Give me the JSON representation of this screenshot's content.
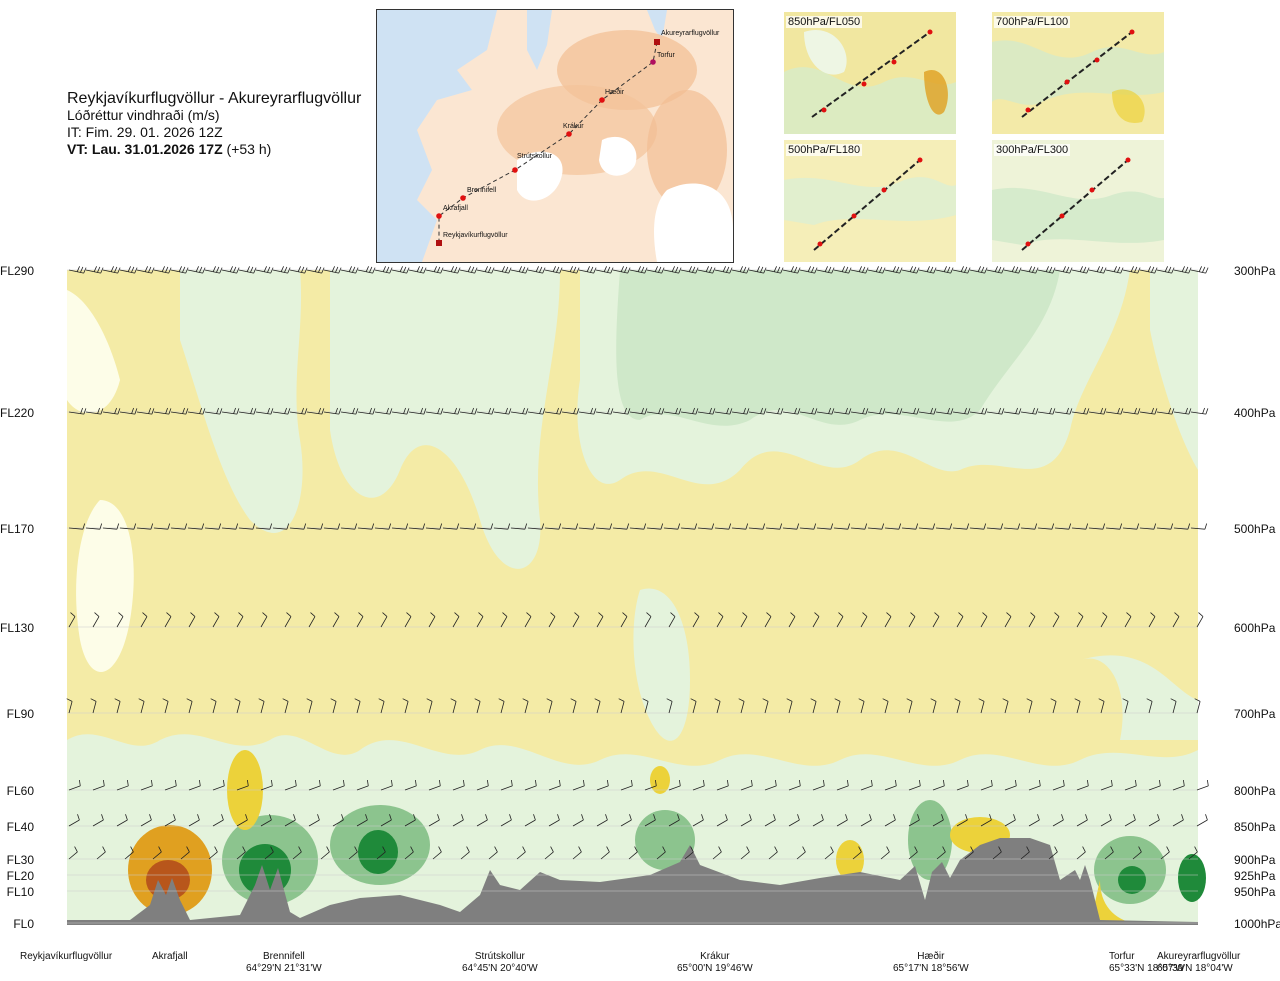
{
  "header": {
    "route": "Reykjavíkurflugvöllur - Akureyrarflugvöllur",
    "product": "Lóðréttur vindhraði (m/s)",
    "init_time": "IT: Fim. 29. 01. 2026 12Z",
    "valid_prefix": "VT: Lau. 31.01.2026 17Z",
    "valid_suffix": "(+53 h)"
  },
  "route_map": {
    "points": [
      {
        "name": "Akureyrarflugvöllur"
      },
      {
        "name": "Torfur"
      },
      {
        "name": "Hæðir"
      },
      {
        "name": "Krákur"
      },
      {
        "name": "Strútskollur"
      },
      {
        "name": "Brennifell"
      },
      {
        "name": "Akrafjall"
      },
      {
        "name": "Reykjavíkurflugvöllur"
      }
    ]
  },
  "level_maps": [
    {
      "label": "850hPa/FL050"
    },
    {
      "label": "700hPa/FL100"
    },
    {
      "label": "500hPa/FL180"
    },
    {
      "label": "300hPa/FL300"
    }
  ],
  "levels": [
    {
      "fl": "FL290",
      "hpa": "300hPa"
    },
    {
      "fl": "FL220",
      "hpa": "400hPa"
    },
    {
      "fl": "FL170",
      "hpa": "500hPa"
    },
    {
      "fl": "FL130",
      "hpa": "600hPa"
    },
    {
      "fl": "FL90",
      "hpa": "700hPa"
    },
    {
      "fl": "FL60",
      "hpa": "800hPa"
    },
    {
      "fl": "FL40",
      "hpa": "850hPa"
    },
    {
      "fl": "FL30",
      "hpa": "900hPa"
    },
    {
      "fl": "FL20",
      "hpa": "925hPa"
    },
    {
      "fl": "FL10",
      "hpa": "950hPa"
    },
    {
      "fl": "FL0",
      "hpa": "1000hPa"
    }
  ],
  "waypoints": [
    {
      "name": "Reykjavíkurflugvöllur",
      "coord": ""
    },
    {
      "name": "Akrafjall",
      "coord": ""
    },
    {
      "name": "Brennifell",
      "coord": "64°29'N 21°31'W"
    },
    {
      "name": "Strútskollur",
      "coord": "64°45'N 20°40'W"
    },
    {
      "name": "Krákur",
      "coord": "65°00'N 19°46'W"
    },
    {
      "name": "Hæðir",
      "coord": "65°17'N 18°56'W"
    },
    {
      "name": "Torfur",
      "coord": "65°33'N 18°07'W"
    },
    {
      "name": "Akureyrarflugvöllur",
      "coord": "65°39'N 18°04'W"
    }
  ],
  "colors": {
    "down_light": "#f4eba6",
    "down_mid": "#ecd23a",
    "down_strong": "#e0a020",
    "down_extreme": "#b8561b",
    "near_zero": "#fdfde8",
    "up_light": "#e4f3dc",
    "up_mid": "#cfe8c9",
    "up_strong": "#8cc48e",
    "up_extreme": "#1f8a3a",
    "terrain": "#7f7f7f",
    "water": "#cfe2f3",
    "land": "#f8d9bd"
  }
}
